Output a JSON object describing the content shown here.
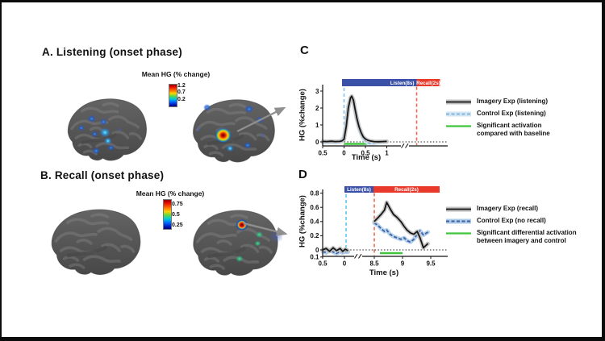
{
  "panels": {
    "A": {
      "title": "A. Listening (onset phase)",
      "colorbar": {
        "title": "Mean HG (% change)",
        "tick_top": "1.2",
        "tick_mid": "0.7",
        "tick_bottom": "0.2"
      }
    },
    "B": {
      "title": "B. Recall (onset phase)",
      "colorbar": {
        "title": "Mean HG (% change)",
        "tick_top": "0.75",
        "tick_mid": "0.5",
        "tick_bottom": "0.25"
      }
    },
    "C": {
      "letter": "C",
      "legend": [
        {
          "name": "Imagery Exp (listening)",
          "name2": ""
        },
        {
          "name": "Control Exp (listening)",
          "name2": ""
        },
        {
          "name": "Significant activation",
          "name2": "compared with baseline"
        }
      ]
    },
    "D": {
      "letter": "D",
      "legend": [
        {
          "name": "Imagery Exp (recall)",
          "name2": ""
        },
        {
          "name": "Control Exp (no recall)",
          "name2": ""
        },
        {
          "name": "Significant differential activation",
          "name2": "between imagery and control"
        }
      ]
    }
  },
  "chart_data": [
    {
      "panel": "C",
      "type": "line",
      "xlabel": "Time (s)",
      "ylabel": "HG (%change)",
      "ylim": [
        -0.35,
        3.3
      ],
      "axis_break": true,
      "y_ticks": [
        {
          "v": 0,
          "label": "0"
        },
        {
          "v": 1,
          "label": "1"
        },
        {
          "v": 2,
          "label": "2"
        },
        {
          "v": 3,
          "label": "3"
        }
      ],
      "x_ticks": [
        {
          "t": -0.5,
          "label": "0.5"
        },
        {
          "t": 0,
          "label": "0"
        },
        {
          "t": 0.5,
          "label": "0.5"
        },
        {
          "t": 1,
          "label": "1"
        }
      ],
      "task_bars": [
        {
          "label": "Listen(8s)",
          "color": "#3a51a7",
          "text_color": "#ffffff"
        },
        {
          "label": "Recall(2s)",
          "color": "#e8392b",
          "text_color": "#ffffff"
        }
      ],
      "event_lines": [
        {
          "event": "listen-onset",
          "color": "#85c1e8"
        },
        {
          "event": "recall-onset",
          "color": "#f4664d"
        }
      ],
      "series": [
        {
          "name": "Imagery Exp (listening)",
          "color": "#161616",
          "band_color": "#c0c0c0",
          "style": "solid",
          "x": [
            -0.5,
            -0.4,
            -0.3,
            -0.2,
            -0.1,
            -0.05,
            0,
            0.05,
            0.1,
            0.15,
            0.18,
            0.22,
            0.26,
            0.3,
            0.35,
            0.4,
            0.45,
            0.5,
            0.55,
            0.6,
            0.7,
            0.8,
            0.9,
            1
          ],
          "y": [
            0.03,
            0.02,
            0.04,
            0.02,
            0.03,
            0.06,
            0.15,
            0.9,
            2.0,
            2.6,
            2.7,
            2.45,
            1.9,
            1.4,
            0.9,
            0.55,
            0.3,
            0.17,
            0.1,
            0.06,
            0.02,
            0.01,
            0.02,
            0.03
          ]
        },
        {
          "name": "Control Exp (listening)",
          "color": "#87b6dd",
          "band_color": "#d3e6f4",
          "style": "dashed",
          "x": [
            -0.5,
            -0.4,
            -0.3,
            -0.2,
            -0.1,
            -0.05,
            0,
            0.05,
            0.1,
            0.15,
            0.18,
            0.22,
            0.26,
            0.3,
            0.35,
            0.4,
            0.45,
            0.5,
            0.55,
            0.6,
            0.7,
            0.8,
            0.9,
            1
          ],
          "y": [
            -0.05,
            -0.04,
            -0.02,
            -0.05,
            0,
            0.12,
            0.35,
            1.1,
            2.15,
            2.6,
            2.62,
            2.35,
            1.8,
            1.3,
            0.8,
            0.45,
            0.2,
            0.05,
            -0.05,
            -0.09,
            -0.08,
            -0.04,
            -0.02,
            0
          ]
        }
      ],
      "significance_marker": {
        "label": "Significant activation compared with baseline",
        "color": "#3fc53b",
        "x_start": 0,
        "x_end": 0.55
      }
    },
    {
      "panel": "D",
      "type": "line",
      "xlabel": "Time (s)",
      "ylabel": "HG (%change)",
      "ylim": [
        -0.13,
        0.85
      ],
      "axis_break": true,
      "y_ticks": [
        {
          "v": 0.8,
          "label": "0.8"
        },
        {
          "v": 0.6,
          "label": "0.6"
        },
        {
          "v": 0.4,
          "label": "0.4"
        },
        {
          "v": 0.2,
          "label": "0.2"
        },
        {
          "v": 0,
          "label": "0"
        },
        {
          "v": -0.1,
          "label": "0.1"
        }
      ],
      "x_ticks": [
        {
          "t": -0.5,
          "label": "0.5"
        },
        {
          "t": 0,
          "label": "0"
        },
        {
          "t": 8.5,
          "label": "8.5"
        },
        {
          "t": 9,
          "label": "9"
        },
        {
          "t": 9.5,
          "label": "9.5"
        }
      ],
      "task_bars": [
        {
          "label": "Listen(8s)",
          "color": "#3a51a7",
          "text_color": "#ffffff"
        },
        {
          "label": "Recall(2s)",
          "color": "#e8392b",
          "text_color": "#ffffff"
        }
      ],
      "event_lines": [
        {
          "event": "listen-onset",
          "color": "#5bc8f0"
        },
        {
          "event": "recall-onset",
          "color": "#f4664d"
        }
      ],
      "series": [
        {
          "name": "Imagery Exp (recall)",
          "color": "#161616",
          "band_color": "#c0c0c0",
          "style": "solid",
          "x": [
            -0.5,
            -0.42,
            -0.34,
            -0.26,
            -0.18,
            -0.1,
            -0.04,
            0.02,
            0.08,
            8.5,
            8.56,
            8.62,
            8.68,
            8.72,
            8.78,
            8.84,
            8.9,
            8.97,
            9.03,
            9.08,
            9.14,
            9.2,
            9.26,
            9.31,
            9.37,
            9.45
          ],
          "y": [
            0,
            0.02,
            -0.02,
            0.03,
            -0.01,
            0.02,
            -0.02,
            0.01,
            -0.01,
            0.4,
            0.45,
            0.5,
            0.56,
            0.67,
            0.58,
            0.5,
            0.46,
            0.4,
            0.33,
            0.28,
            0.24,
            0.22,
            0.26,
            0.17,
            0.03,
            0.09
          ]
        },
        {
          "name": "Control Exp (no recall)",
          "color": "#3c5fa4",
          "band_color": "#aecce8",
          "style": "dashed",
          "x": [
            -0.5,
            -0.42,
            -0.34,
            -0.26,
            -0.18,
            -0.1,
            -0.04,
            0.02,
            0.08,
            8.5,
            8.56,
            8.62,
            8.68,
            8.72,
            8.78,
            8.84,
            8.9,
            8.97,
            9.03,
            9.08,
            9.14,
            9.2,
            9.26,
            9.31,
            9.37,
            9.45
          ],
          "y": [
            -0.02,
            -0.04,
            0,
            -0.03,
            -0.05,
            -0.02,
            -0.04,
            -0.02,
            -0.03,
            0.38,
            0.35,
            0.3,
            0.26,
            0.28,
            0.22,
            0.19,
            0.17,
            0.15,
            0.17,
            0.13,
            0.11,
            0.15,
            0.22,
            0.27,
            0.21,
            0.25
          ]
        }
      ],
      "significance_marker": {
        "label": "Significant differential activation between imagery and control",
        "color": "#3fc53b",
        "x_start": 8.6,
        "x_end": 9.0
      }
    }
  ]
}
